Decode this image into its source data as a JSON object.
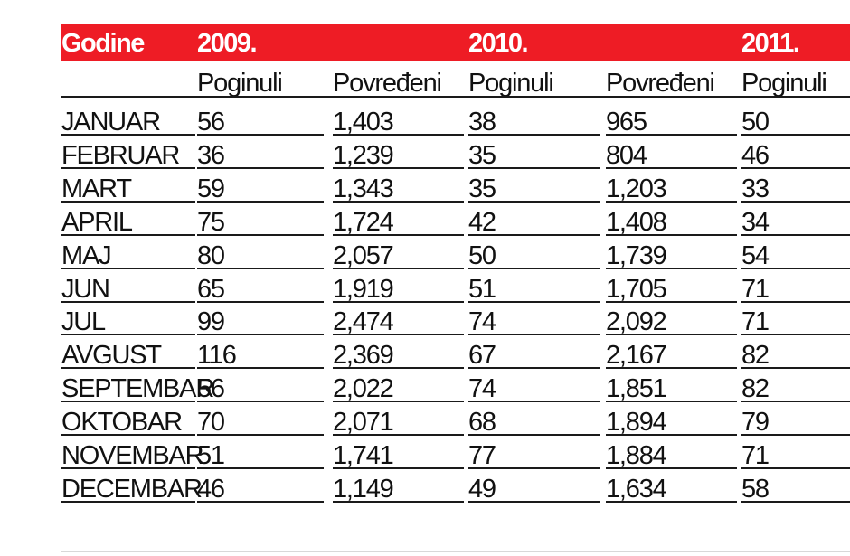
{
  "chart_data": {
    "type": "table",
    "header": {
      "label": "Godine",
      "years": [
        "2009.",
        "2010.",
        "2011."
      ]
    },
    "columns": [
      "Poginuli",
      "Povređeni",
      "Poginuli",
      "Povređeni",
      "Poginuli"
    ],
    "rows": [
      {
        "month": "JANUAR",
        "values": [
          "56",
          "1,403",
          "38",
          "965",
          "50"
        ]
      },
      {
        "month": "FEBRUAR",
        "values": [
          "36",
          "1,239",
          "35",
          "804",
          "46"
        ]
      },
      {
        "month": "MART",
        "values": [
          "59",
          "1,343",
          "35",
          "1,203",
          "33"
        ]
      },
      {
        "month": "APRIL",
        "values": [
          "75",
          "1,724",
          "42",
          "1,408",
          "34"
        ]
      },
      {
        "month": "MAJ",
        "values": [
          "80",
          "2,057",
          "50",
          "1,739",
          "54"
        ]
      },
      {
        "month": "JUN",
        "values": [
          "65",
          "1,919",
          "51",
          "1,705",
          "71"
        ]
      },
      {
        "month": "JUL",
        "values": [
          "99",
          "2,474",
          "74",
          "2,092",
          "71"
        ]
      },
      {
        "month": "AVGUST",
        "values": [
          "116",
          "2,369",
          "67",
          "2,167",
          "82"
        ]
      },
      {
        "month": "SEPTEMBAR",
        "values": [
          "56",
          "2,022",
          "74",
          "1,851",
          "82"
        ]
      },
      {
        "month": "OKTOBAR",
        "values": [
          "70",
          "2,071",
          "68",
          "1,894",
          "79"
        ]
      },
      {
        "month": "NOVEMBAR",
        "values": [
          "51",
          "1,741",
          "77",
          "1,884",
          "71"
        ]
      },
      {
        "month": "DECEMBAR",
        "values": [
          "46",
          "1,149",
          "49",
          "1,634",
          "58"
        ]
      }
    ],
    "colors": {
      "header_bg": "#ee1c25",
      "header_text": "#ffffff",
      "text": "#111111",
      "rule": "#1a1a1a"
    }
  }
}
